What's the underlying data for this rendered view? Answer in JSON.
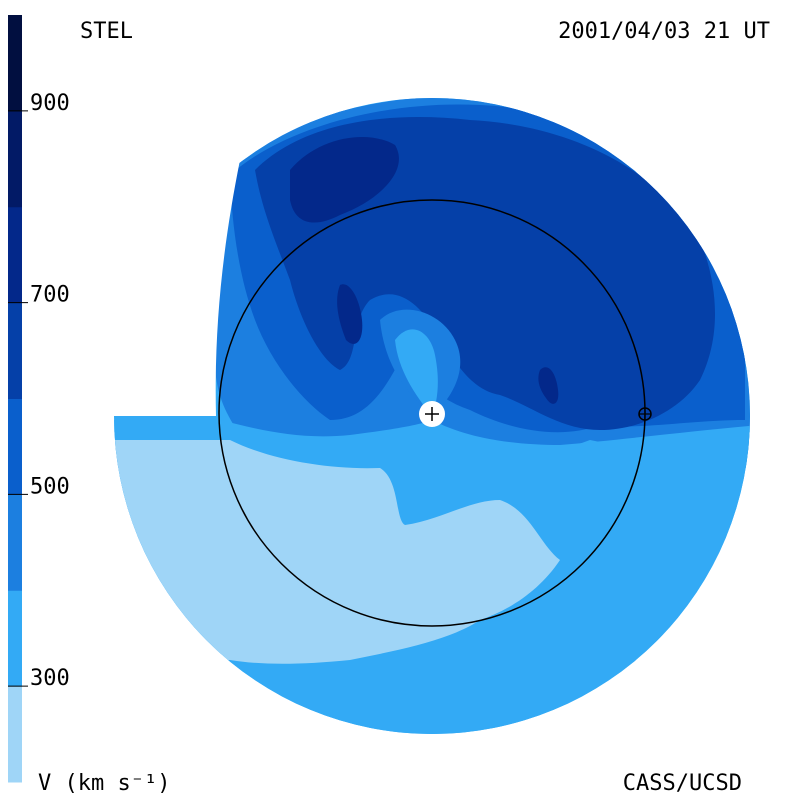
{
  "header": {
    "instrument": "STEL",
    "datetime": "2001/04/03 21 UT"
  },
  "footer": {
    "units_label": "V (km s⁻¹)",
    "credit": "CASS/UCSD"
  },
  "colors": {
    "level_0": "#9fd5f7",
    "level_1": "#33aaf5",
    "level_2": "#1c7fe0",
    "level_3": "#0a5fcc",
    "level_4": "#0540a8",
    "level_5": "#03288a",
    "level_6": "#021a66",
    "level_7": "#010f40",
    "level_8": "#000820",
    "orbit_line": "#000000",
    "sun_marker": "#ffffff"
  },
  "chart_data": {
    "type": "heatmap",
    "title": "",
    "colorbar": {
      "label": "V (km s⁻¹)",
      "range": [
        200,
        1000
      ],
      "ticks": [
        {
          "value": 300,
          "label": "300"
        },
        {
          "value": 500,
          "label": "500"
        },
        {
          "value": 700,
          "label": "700"
        },
        {
          "value": 900,
          "label": "900"
        }
      ],
      "bins": [
        {
          "from": 200,
          "to": 300,
          "color": "#9fd5f7"
        },
        {
          "from": 300,
          "to": 400,
          "color": "#33aaf5"
        },
        {
          "from": 400,
          "to": 500,
          "color": "#1c7fe0"
        },
        {
          "from": 500,
          "to": 600,
          "color": "#0a5fcc"
        },
        {
          "from": 600,
          "to": 700,
          "color": "#0540a8"
        },
        {
          "from": 700,
          "to": 800,
          "color": "#03288a"
        },
        {
          "from": 800,
          "to": 900,
          "color": "#021a66"
        },
        {
          "from": 900,
          "to": 1000,
          "color": "#010f40"
        }
      ]
    },
    "markers": [
      {
        "name": "Sun",
        "symbol": "+"
      },
      {
        "name": "Earth",
        "symbol": "⊕"
      }
    ]
  }
}
